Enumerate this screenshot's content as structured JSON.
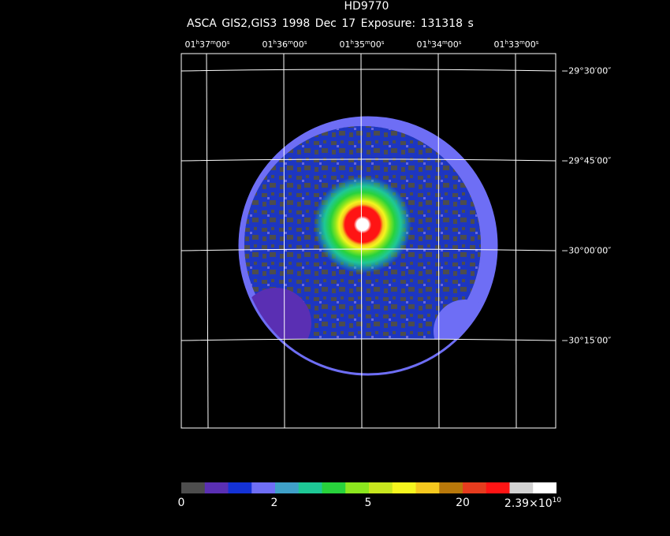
{
  "header": {
    "target": "HD9770",
    "subtitle": "ASCA GIS2,GIS3   1998 Dec 17    Exposure: 131318 s"
  },
  "ra_ticks": [
    {
      "h": "01",
      "m": "37",
      "s": "00"
    },
    {
      "h": "01",
      "m": "36",
      "s": "00"
    },
    {
      "h": "01",
      "m": "35",
      "s": "00"
    },
    {
      "h": "01",
      "m": "34",
      "s": "00"
    },
    {
      "h": "01",
      "m": "33",
      "s": "00"
    }
  ],
  "dec_ticks": [
    "−29°30′00″",
    "−29°45′00″",
    "−30°00′00″",
    "−30°15′00″"
  ],
  "colorbar": {
    "colors": [
      "#4d4d4d",
      "#5a2fb3",
      "#1432d6",
      "#6e6ef5",
      "#3fa0c8",
      "#1ec896",
      "#28d23c",
      "#8ce61e",
      "#c8e61e",
      "#f5f51e",
      "#f5c81e",
      "#b8780a",
      "#e63c1e",
      "#ff1414",
      "#d2d2d2",
      "#ffffff"
    ],
    "labels": {
      "l0": "0",
      "l2": "2",
      "l5": "5",
      "l20": "20",
      "lmax_mant": "2.39×10",
      "lmax_exp": "10"
    }
  },
  "image_colors": {
    "background": "#000000",
    "grid": "#ffffff",
    "low": "#4d4d4d",
    "blue": "#1432d6",
    "edge": "#6e6ef5",
    "core": "#ff1414",
    "peak": "#ffffff"
  }
}
